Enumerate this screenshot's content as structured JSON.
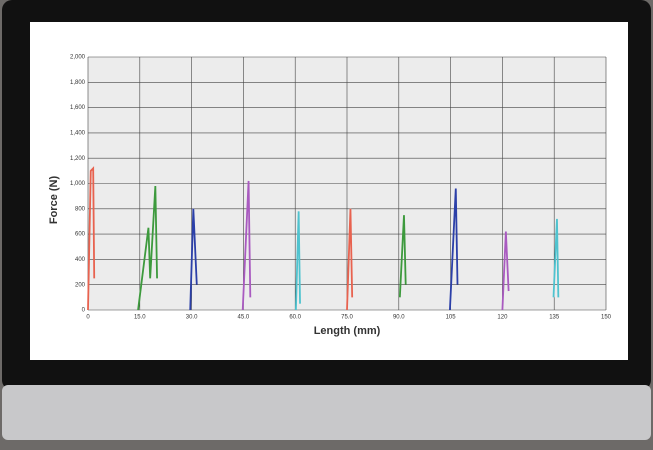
{
  "chart_data": {
    "type": "line",
    "xlabel": "Length (mm)",
    "ylabel": "Force (N)",
    "xlim": [
      0,
      150
    ],
    "xticks": [
      0,
      {
        "value": 15,
        "label": "15.0"
      },
      {
        "value": 30,
        "label": "30.0"
      },
      {
        "value": 45,
        "label": "45.0"
      },
      {
        "value": 60,
        "label": "60.0"
      },
      {
        "value": 75,
        "label": "75.0"
      },
      {
        "value": 90,
        "label": "90.0"
      },
      105,
      120,
      135,
      150
    ],
    "ylim": [
      0,
      2000
    ],
    "yticks": [
      0,
      200,
      400,
      600,
      800,
      {
        "value": 1000,
        "label": "1,000"
      },
      {
        "value": 1200,
        "label": "1,200"
      },
      {
        "value": 1400,
        "label": "1,400"
      },
      {
        "value": 1600,
        "label": "1,600"
      },
      {
        "value": 1800,
        "label": "1,800"
      },
      {
        "value": 2000,
        "label": "2,000"
      }
    ],
    "grid": true,
    "series": [
      {
        "color": "#e8624f",
        "x": [
          0,
          0.8,
          1.5,
          1.8
        ],
        "values": [
          0,
          1100,
          1120,
          250
        ]
      },
      {
        "color": "#3d9a3d",
        "x": [
          14.5,
          17.5,
          18,
          19.5,
          20
        ],
        "values": [
          0,
          650,
          250,
          980,
          250
        ]
      },
      {
        "color": "#2b3fa8",
        "x": [
          29.6,
          30.5,
          31.5
        ],
        "values": [
          0,
          800,
          200
        ]
      },
      {
        "color": "#a95ac0",
        "x": [
          44.8,
          46.5,
          47
        ],
        "values": [
          0,
          1020,
          100
        ]
      },
      {
        "color": "#4fc3cf",
        "x": [
          60.2,
          61,
          61.4
        ],
        "values": [
          0,
          780,
          50
        ]
      },
      {
        "color": "#e8624f",
        "x": [
          75,
          76,
          76.5
        ],
        "values": [
          0,
          800,
          100
        ]
      },
      {
        "color": "#3d9a3d",
        "x": [
          90.3,
          91.5,
          92
        ],
        "values": [
          100,
          750,
          200
        ]
      },
      {
        "color": "#2b3fa8",
        "x": [
          104.8,
          106.5,
          107
        ],
        "values": [
          0,
          960,
          200
        ]
      },
      {
        "color": "#a95ac0",
        "x": [
          120,
          121,
          121.8
        ],
        "values": [
          0,
          620,
          150
        ]
      },
      {
        "color": "#4fc3cf",
        "x": [
          134.8,
          135.8,
          136.2
        ],
        "values": [
          100,
          720,
          100
        ]
      }
    ]
  }
}
